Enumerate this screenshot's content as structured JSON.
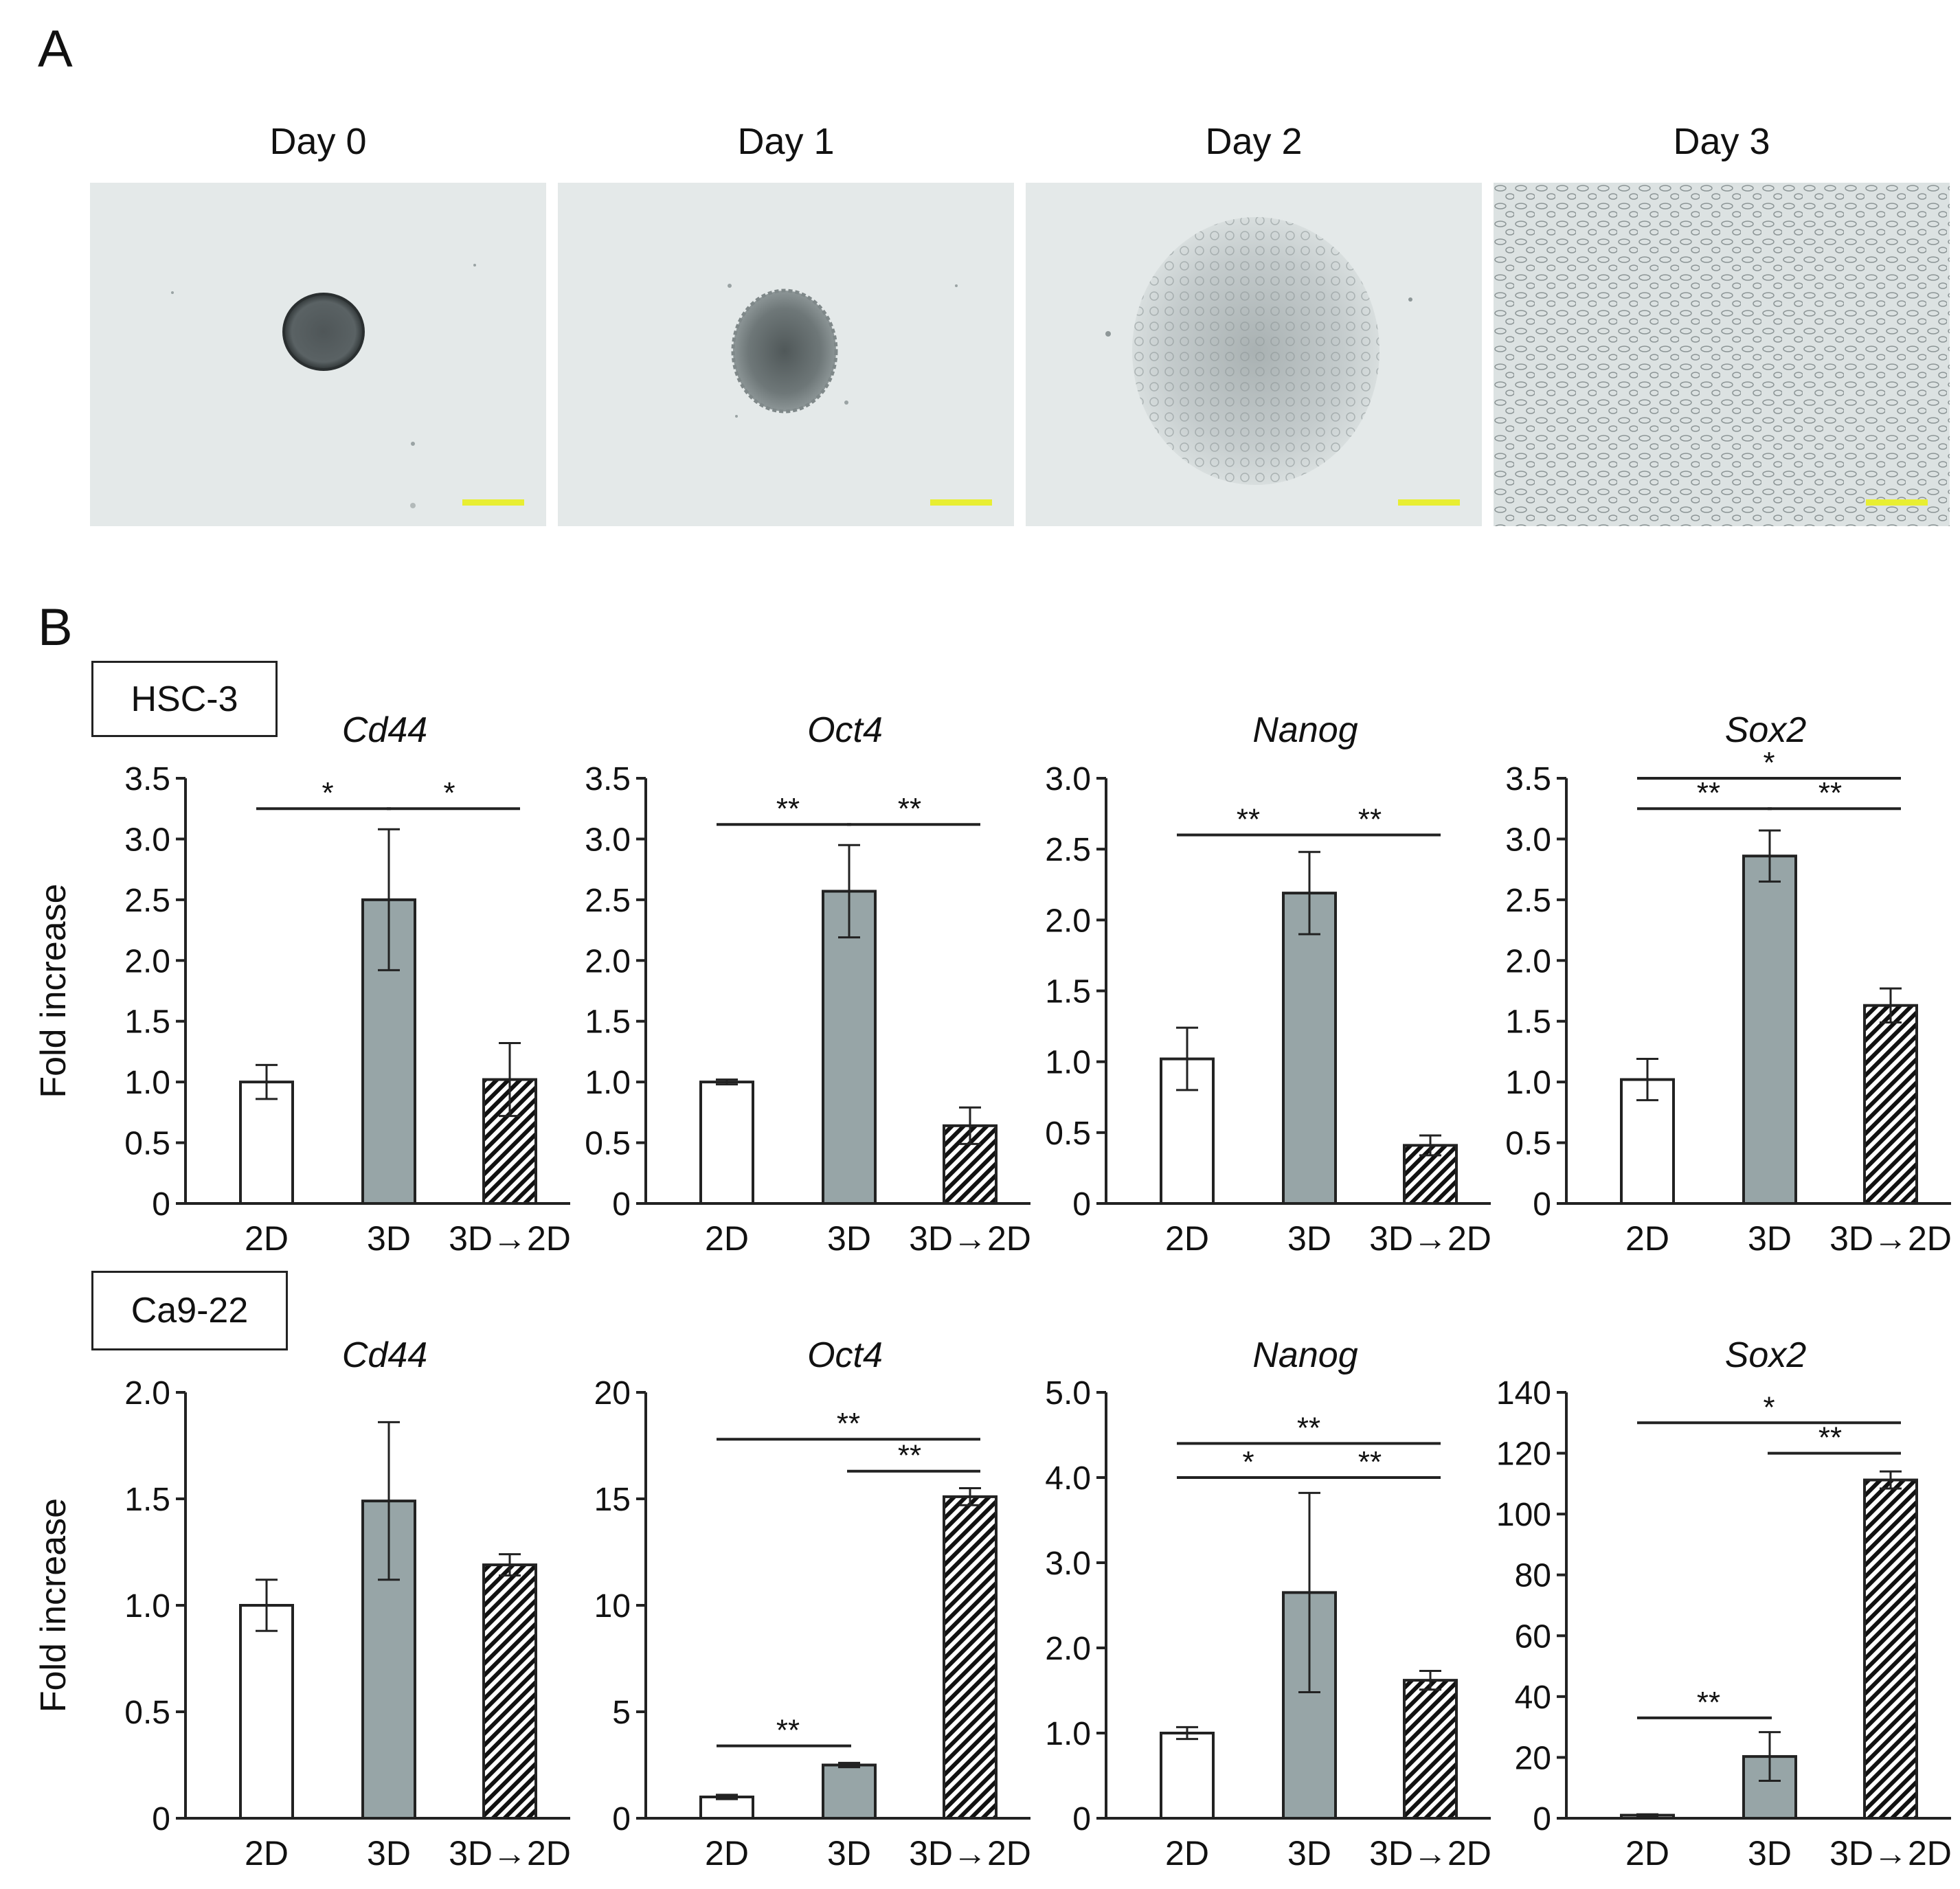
{
  "panel_a": {
    "label": "A",
    "days": [
      "Day 0",
      "Day 1",
      "Day 2",
      "Day 3"
    ]
  },
  "panel_b": {
    "label": "B",
    "cell_lines": [
      "HSC-3",
      "Ca9-22"
    ]
  },
  "colors": {
    "bar_2d": "#ffffff",
    "bar_3d": "#97a5a7",
    "bar_3d_2d_stripe": "#111111",
    "scale_bar": "#e8ee32",
    "micrograph_bg": "#e4e9e9"
  },
  "chart_data": [
    {
      "type": "bar",
      "cell_line": "HSC-3",
      "title": "Cd44",
      "ylabel": "Fold increase",
      "categories": [
        "2D",
        "3D",
        "3D→2D"
      ],
      "values": [
        1.0,
        2.5,
        1.02
      ],
      "errors": [
        0.14,
        0.58,
        0.3
      ],
      "ylim": [
        0,
        3.5
      ],
      "yticks": [
        "0",
        "0.5",
        "1.0",
        "1.5",
        "2.0",
        "2.5",
        "3.0",
        "3.5"
      ],
      "yticks_values": [
        0,
        0.5,
        1.0,
        1.5,
        2.0,
        2.5,
        3.0,
        3.5
      ],
      "significance": [
        {
          "from": 0,
          "to": 1,
          "y": 3.25,
          "label": "*"
        },
        {
          "from": 1,
          "to": 2,
          "y": 3.25,
          "label": "*"
        }
      ]
    },
    {
      "type": "bar",
      "cell_line": "HSC-3",
      "title": "Oct4",
      "ylabel": "",
      "categories": [
        "2D",
        "3D",
        "3D→2D"
      ],
      "values": [
        1.0,
        2.57,
        0.64
      ],
      "errors": [
        0.02,
        0.38,
        0.15
      ],
      "ylim": [
        0,
        3.5
      ],
      "yticks": [
        "0",
        "0.5",
        "1.0",
        "1.5",
        "2.0",
        "2.5",
        "3.0",
        "3.5"
      ],
      "yticks_values": [
        0,
        0.5,
        1.0,
        1.5,
        2.0,
        2.5,
        3.0,
        3.5
      ],
      "significance": [
        {
          "from": 0,
          "to": 1,
          "y": 3.12,
          "label": "**"
        },
        {
          "from": 1,
          "to": 2,
          "y": 3.12,
          "label": "**"
        }
      ]
    },
    {
      "type": "bar",
      "cell_line": "HSC-3",
      "title": "Nanog",
      "ylabel": "",
      "categories": [
        "2D",
        "3D",
        "3D→2D"
      ],
      "values": [
        1.02,
        2.19,
        0.41
      ],
      "errors": [
        0.22,
        0.29,
        0.07
      ],
      "ylim": [
        0,
        3.0
      ],
      "yticks": [
        "0",
        "0.5",
        "1.0",
        "1.5",
        "2.0",
        "2.5",
        "3.0"
      ],
      "yticks_values": [
        0,
        0.5,
        1.0,
        1.5,
        2.0,
        2.5,
        3.0
      ],
      "significance": [
        {
          "from": 0,
          "to": 1,
          "y": 2.6,
          "label": "**"
        },
        {
          "from": 1,
          "to": 2,
          "y": 2.6,
          "label": "**"
        }
      ]
    },
    {
      "type": "bar",
      "cell_line": "HSC-3",
      "title": "Sox2",
      "ylabel": "",
      "categories": [
        "2D",
        "3D",
        "3D→2D"
      ],
      "values": [
        1.02,
        2.86,
        1.63
      ],
      "errors": [
        0.17,
        0.21,
        0.14
      ],
      "ylim": [
        0,
        3.5
      ],
      "yticks": [
        "0",
        "0.5",
        "1.0",
        "1.5",
        "2.0",
        "2.5",
        "3.0",
        "3.5"
      ],
      "yticks_values": [
        0,
        0.5,
        1.0,
        1.5,
        2.0,
        2.5,
        3.0,
        3.5
      ],
      "significance": [
        {
          "from": 0,
          "to": 2,
          "y": 3.5,
          "label": "*"
        },
        {
          "from": 0,
          "to": 1,
          "y": 3.25,
          "label": "**"
        },
        {
          "from": 1,
          "to": 2,
          "y": 3.25,
          "label": "**"
        }
      ]
    },
    {
      "type": "bar",
      "cell_line": "Ca9-22",
      "title": "Cd44",
      "ylabel": "Fold increase",
      "categories": [
        "2D",
        "3D",
        "3D→2D"
      ],
      "values": [
        1.0,
        1.49,
        1.19
      ],
      "errors": [
        0.12,
        0.37,
        0.05
      ],
      "ylim": [
        0,
        2.0
      ],
      "yticks": [
        "0",
        "0.5",
        "1.0",
        "1.5",
        "2.0"
      ],
      "yticks_values": [
        0,
        0.5,
        1.0,
        1.5,
        2.0
      ],
      "significance": []
    },
    {
      "type": "bar",
      "cell_line": "Ca9-22",
      "title": "Oct4",
      "ylabel": "",
      "categories": [
        "2D",
        "3D",
        "3D→2D"
      ],
      "values": [
        1.0,
        2.5,
        15.1
      ],
      "errors": [
        0.1,
        0.1,
        0.4
      ],
      "ylim": [
        0,
        20
      ],
      "yticks": [
        "0",
        "5",
        "10",
        "15",
        "20"
      ],
      "yticks_values": [
        0,
        5,
        10,
        15,
        20
      ],
      "significance": [
        {
          "from": 0,
          "to": 2,
          "y": 17.8,
          "label": "**"
        },
        {
          "from": 1,
          "to": 2,
          "y": 16.3,
          "label": "**"
        },
        {
          "from": 0,
          "to": 1,
          "y": 3.4,
          "label": "**"
        }
      ]
    },
    {
      "type": "bar",
      "cell_line": "Ca9-22",
      "title": "Nanog",
      "ylabel": "",
      "categories": [
        "2D",
        "3D",
        "3D→2D"
      ],
      "values": [
        1.0,
        2.65,
        1.62
      ],
      "errors": [
        0.07,
        1.17,
        0.11
      ],
      "ylim": [
        0,
        5.0
      ],
      "yticks": [
        "0",
        "1.0",
        "2.0",
        "3.0",
        "4.0",
        "5.0"
      ],
      "yticks_values": [
        0,
        1.0,
        2.0,
        3.0,
        4.0,
        5.0
      ],
      "significance": [
        {
          "from": 0,
          "to": 2,
          "y": 4.4,
          "label": "**"
        },
        {
          "from": 0,
          "to": 1,
          "y": 4.0,
          "label": "*"
        },
        {
          "from": 1,
          "to": 2,
          "y": 4.0,
          "label": "**"
        }
      ]
    },
    {
      "type": "bar",
      "cell_line": "Ca9-22",
      "title": "Sox2",
      "ylabel": "",
      "categories": [
        "2D",
        "3D",
        "3D→2D"
      ],
      "values": [
        1.0,
        20.3,
        111.2
      ],
      "errors": [
        0.3,
        8.0,
        2.8
      ],
      "ylim": [
        0,
        140
      ],
      "yticks": [
        "0",
        "20",
        "40",
        "60",
        "80",
        "100",
        "120",
        "140"
      ],
      "yticks_values": [
        0,
        20,
        40,
        60,
        80,
        100,
        120,
        140
      ],
      "significance": [
        {
          "from": 0,
          "to": 2,
          "y": 130,
          "label": "*"
        },
        {
          "from": 1,
          "to": 2,
          "y": 120,
          "label": "**"
        },
        {
          "from": 0,
          "to": 1,
          "y": 33,
          "label": "**"
        }
      ]
    }
  ]
}
